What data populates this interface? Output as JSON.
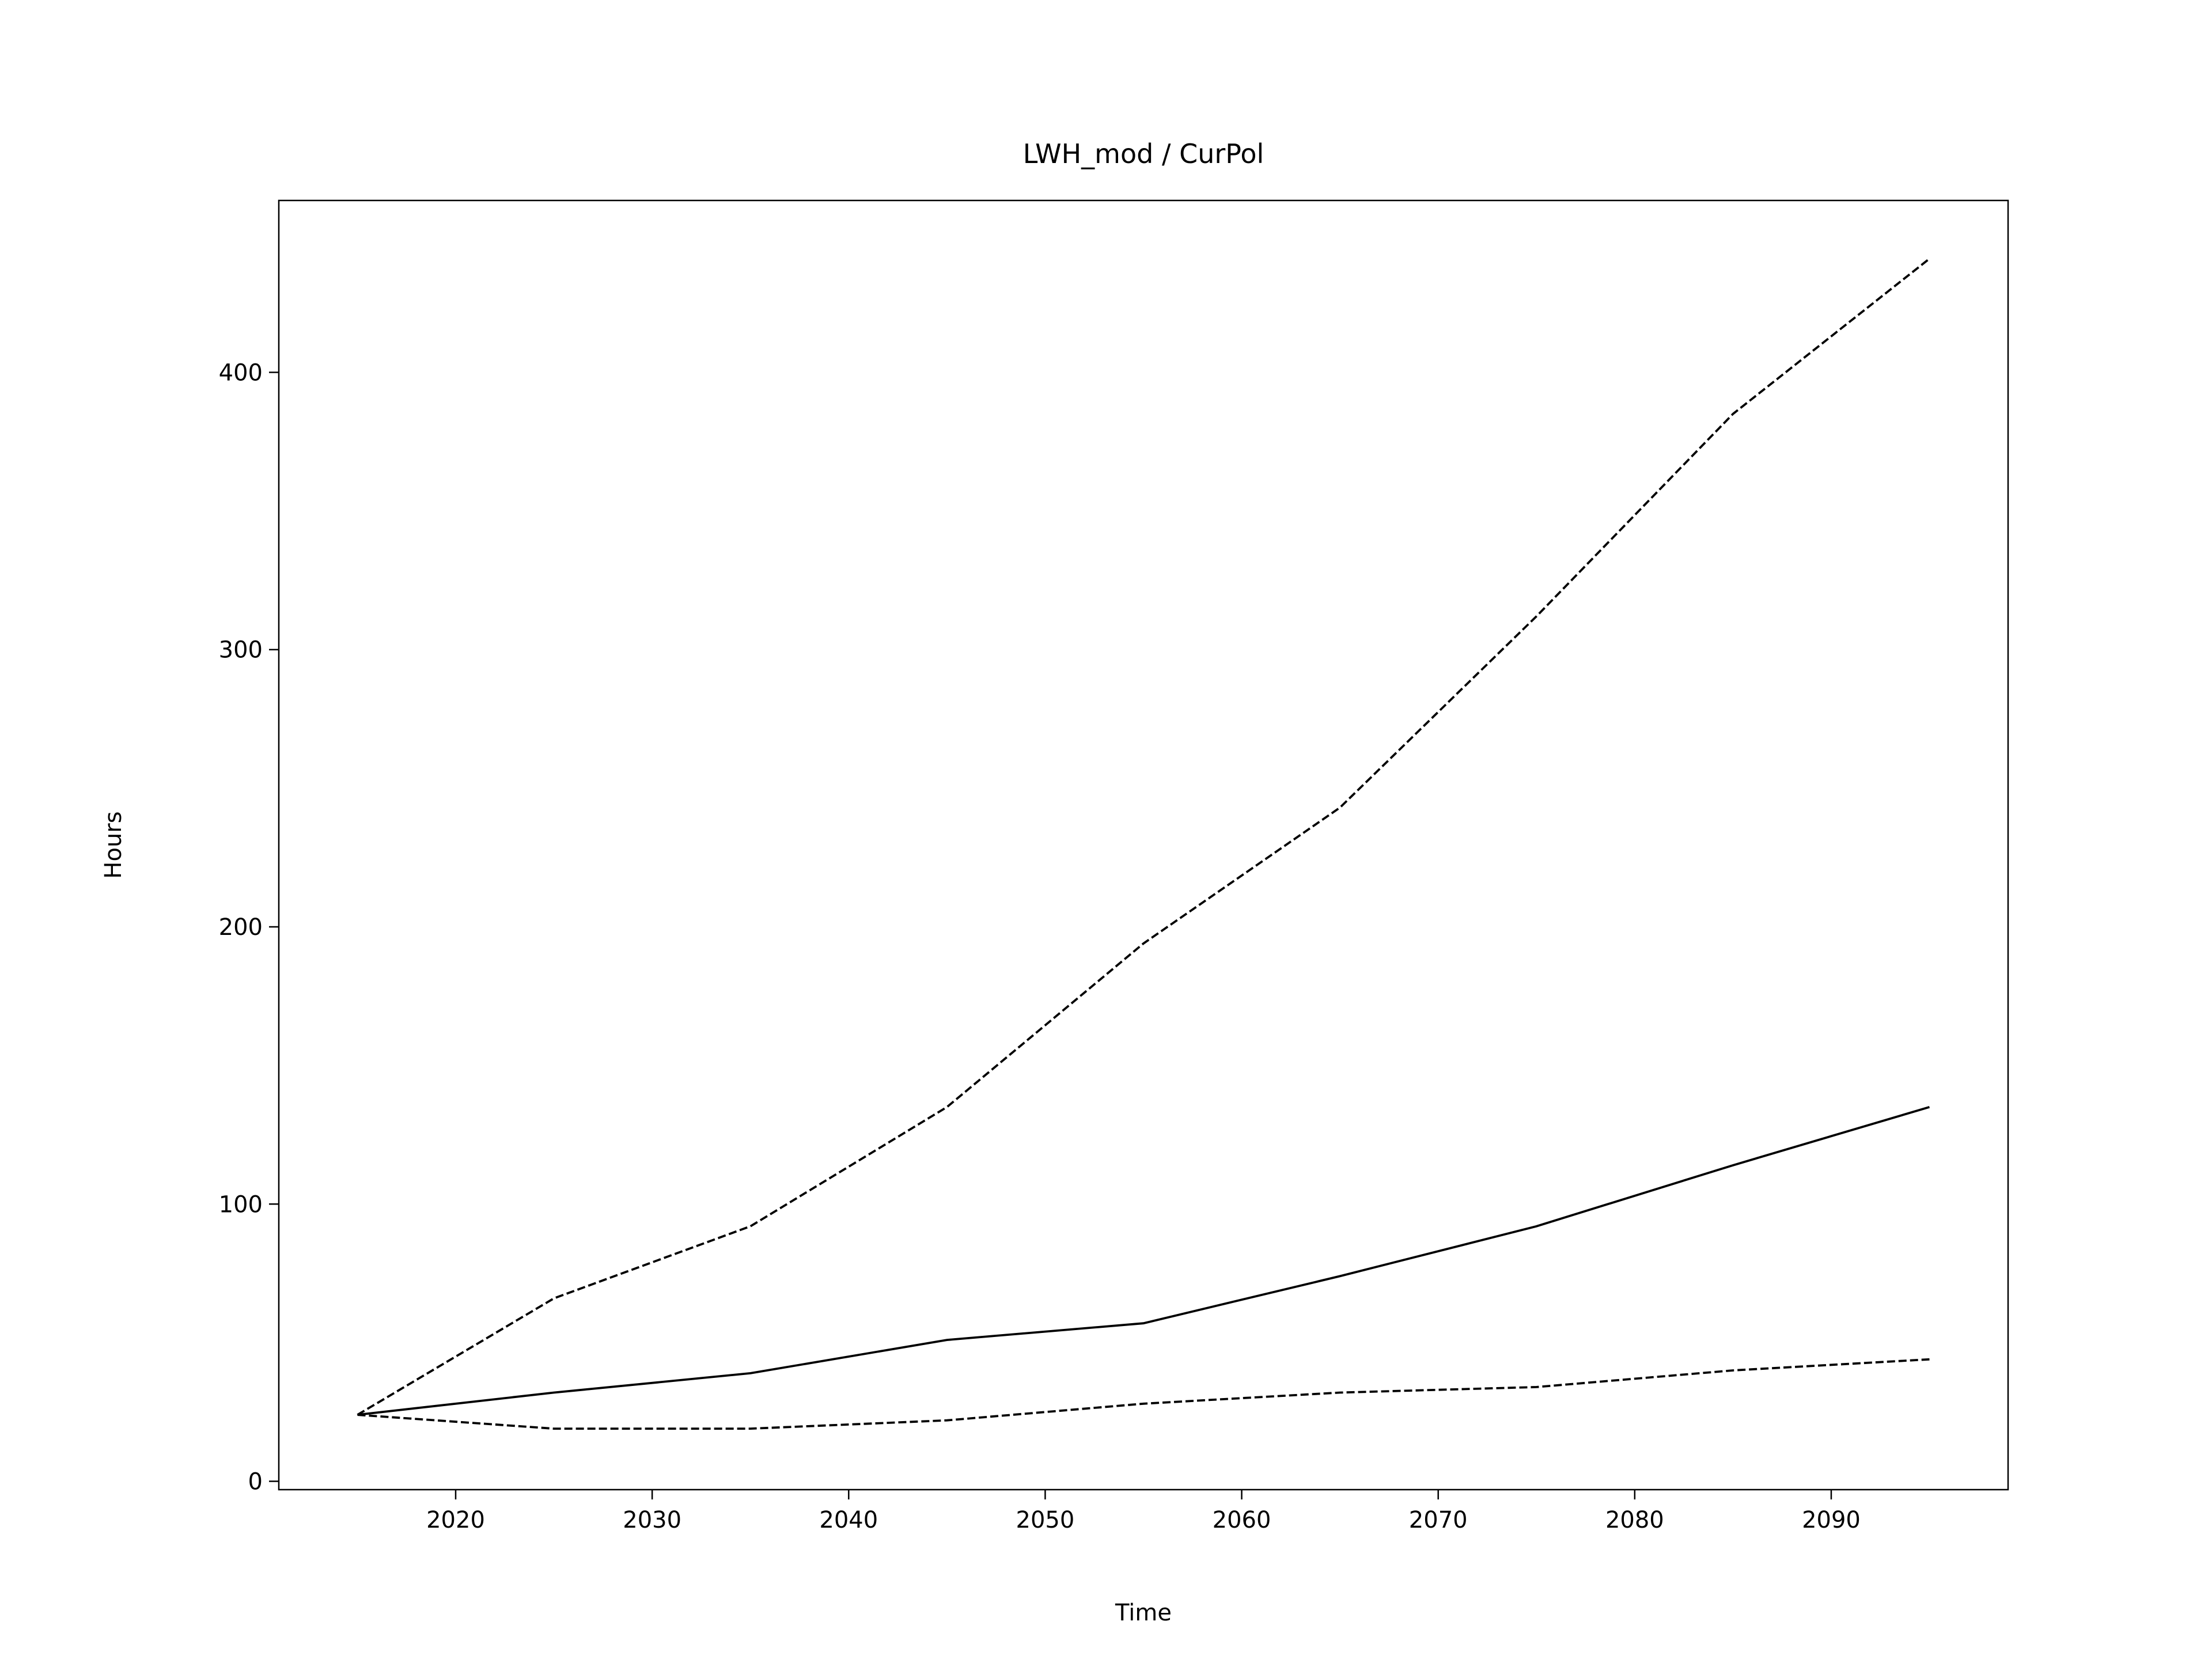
{
  "chart_data": {
    "type": "line",
    "title": "LWH_mod / CurPol",
    "xlabel": "Time",
    "ylabel": "Hours",
    "xlim": [
      2011,
      2099
    ],
    "ylim": [
      -3,
      462
    ],
    "xticks": [
      2020,
      2030,
      2040,
      2050,
      2060,
      2070,
      2080,
      2090
    ],
    "yticks": [
      0,
      100,
      200,
      300,
      400
    ],
    "grid": false,
    "legend": "none",
    "x": [
      2015,
      2025,
      2035,
      2045,
      2055,
      2065,
      2075,
      2085,
      2095
    ],
    "series": [
      {
        "style": "dashed",
        "color": "#000000",
        "values": [
          24,
          66,
          92,
          135,
          194,
          243,
          312,
          385,
          441
        ]
      },
      {
        "style": "solid",
        "color": "#000000",
        "values": [
          24,
          32,
          39,
          51,
          57,
          74,
          92,
          114,
          135
        ]
      },
      {
        "style": "dashed",
        "color": "#000000",
        "values": [
          24,
          19,
          19,
          22,
          28,
          32,
          34,
          40,
          44
        ]
      }
    ]
  }
}
